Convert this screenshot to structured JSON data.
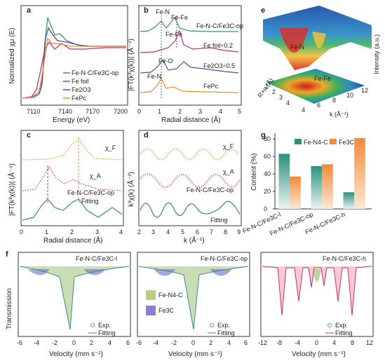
{
  "panels": {
    "a": {
      "letter": "a",
      "xlabel": "Energy (eV)",
      "ylabel": "Normalized χμ (E)",
      "xticks": [
        "7110",
        "7140",
        "7170",
        "7200"
      ],
      "legend": [
        "Fe-N-C/Fe3C-op",
        "Fe foil",
        "Fe2O3",
        "FePc"
      ],
      "colors": [
        "#3a8f82",
        "#c0336f",
        "#5b4aa6",
        "#f08a2c"
      ]
    },
    "b": {
      "letter": "b",
      "xlabel": "Radial distance (Å)",
      "ylabel": "|FT(k³χ(k))| (Å⁻⁴)",
      "xticks": [
        "0",
        "1",
        "2",
        "3",
        "4",
        "5"
      ],
      "annotations": [
        "Fe-N",
        "Fe-Fe",
        "Fe-Fe",
        "Fe-O",
        "Fe-N"
      ],
      "series_labels": [
        "Fe-N-C/Fe3C-op",
        "Fe foil÷0.2",
        "Fe2O3÷0.5",
        "FePc"
      ]
    },
    "c": {
      "letter": "c",
      "xlabel": "Radial distance (Å)",
      "ylabel": "|FT(k³χ(k))| (Å⁻⁴)",
      "xticks": [
        "0",
        "1",
        "2",
        "3",
        "4"
      ],
      "labels": [
        "χ_F",
        "χ_A",
        "Fe-N-C/Fe3C-op",
        "Fitting"
      ]
    },
    "d": {
      "letter": "d",
      "xlabel": "k (Å⁻¹)",
      "ylabel": "k³χ(k) (Å⁻³)",
      "xticks": [
        "2",
        "3",
        "4",
        "5",
        "6",
        "7",
        "8",
        "9"
      ],
      "labels": [
        "χ_F",
        "χ_A",
        "Fe-N-C/Fe3C-op",
        "Fitting"
      ]
    },
    "e": {
      "letter": "e",
      "zlabel": "Intensity (a.u.)",
      "xlabel": "k (Å⁻¹)",
      "ylabel": "R+α (Å)",
      "peak_labels": [
        "Fe-N",
        "Fe-Fe"
      ],
      "k_ticks": [
        "4",
        "6",
        "8",
        "10",
        "12"
      ],
      "r_ticks": [
        "1",
        "2",
        "3",
        "4"
      ]
    },
    "f": {
      "letter": "f",
      "ylabel": "Transmission",
      "xlabel": "Velocity (mm s⁻¹)",
      "subpanels": [
        {
          "title": "Fe-N-C/Fe3C-l",
          "xticks": [
            "-6",
            "-4",
            "-2",
            "0",
            "2",
            "4",
            "6"
          ]
        },
        {
          "title": "Fe-N-C/Fe3C-op",
          "xticks": [
            "-6",
            "-4",
            "-2",
            "0",
            "2",
            "4",
            "6"
          ]
        },
        {
          "title": "Fe-N-C/Fe3C-h",
          "xticks": [
            "-12",
            "-8",
            "-4",
            "0",
            "4",
            "8",
            "12"
          ]
        }
      ],
      "component_legend": [
        "Fe-N4-C",
        "Fe3C"
      ],
      "legend": [
        "Exp.",
        "Fitting"
      ]
    },
    "g": {
      "letter": "g",
      "ylabel": "Content (%)",
      "yticks": [
        "0",
        "20",
        "40",
        "60",
        "80"
      ],
      "legend": [
        "Fe-N4-C",
        "Fe3C"
      ],
      "colors": [
        "#2e8f7f",
        "#f28a3a"
      ]
    }
  },
  "chart_data": [
    {
      "type": "bar",
      "categories": [
        "Fe-N-C/Fe3C-l",
        "Fe-N-C/Fe3C-op",
        "Fe-N-C/Fe3C-h"
      ],
      "series": [
        {
          "name": "Fe-N4-C",
          "values": [
            63,
            49,
            19
          ]
        },
        {
          "name": "Fe3C",
          "values": [
            37,
            51,
            81
          ]
        }
      ],
      "ylabel": "Content (%)",
      "ylim": [
        0,
        85
      ]
    }
  ]
}
